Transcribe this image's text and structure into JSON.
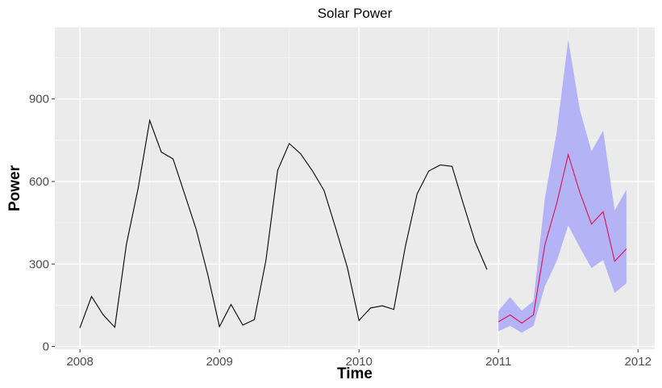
{
  "chart_data": {
    "type": "line",
    "title": "Solar Power",
    "xlabel": "Time",
    "ylabel": "Power",
    "xlim": [
      2007.82,
      2012.12
    ],
    "ylim": [
      -10,
      1160
    ],
    "x_ticks": [
      2008,
      2009,
      2010,
      2011,
      2012
    ],
    "x_tick_labels": [
      "2008",
      "2009",
      "2010",
      "2011",
      "2012"
    ],
    "y_ticks": [
      0,
      300,
      600,
      900
    ],
    "y_tick_labels": [
      "0",
      "300",
      "600",
      "900"
    ],
    "grid": true,
    "legend": "none",
    "colors": {
      "panel": "#ebebeb",
      "grid_major": "#ffffff",
      "grid_minor": "#f5f5f5",
      "observed": "#000000",
      "forecast": "#e0114b",
      "interval": "#b3b3f5"
    },
    "series": [
      {
        "role": "observed",
        "x": [
          2008.0,
          2008.083,
          2008.167,
          2008.25,
          2008.333,
          2008.417,
          2008.5,
          2008.583,
          2008.667,
          2008.75,
          2008.833,
          2008.917,
          2009.0,
          2009.083,
          2009.167,
          2009.25,
          2009.333,
          2009.417,
          2009.5,
          2009.583,
          2009.667,
          2009.75,
          2009.833,
          2009.917,
          2010.0,
          2010.083,
          2010.167,
          2010.25,
          2010.333,
          2010.417,
          2010.5,
          2010.583,
          2010.667,
          2010.75,
          2010.833,
          2010.917
        ],
        "values": [
          68,
          182,
          115,
          70,
          372,
          575,
          822,
          707,
          682,
          555,
          426,
          260,
          72,
          153,
          78,
          98,
          313,
          640,
          738,
          700,
          638,
          567,
          430,
          287,
          95,
          140,
          148,
          135,
          365,
          555,
          638,
          660,
          655,
          515,
          380,
          280
        ]
      },
      {
        "role": "forecast",
        "x": [
          2011.0,
          2011.083,
          2011.167,
          2011.25,
          2011.333,
          2011.417,
          2011.5,
          2011.583,
          2011.667,
          2011.75,
          2011.833,
          2011.917
        ],
        "values": [
          90,
          115,
          85,
          115,
          370,
          520,
          698,
          560,
          445,
          490,
          310,
          355
        ],
        "lower": [
          55,
          75,
          50,
          75,
          220,
          310,
          440,
          360,
          285,
          315,
          195,
          230
        ],
        "upper": [
          130,
          180,
          130,
          165,
          540,
          780,
          1115,
          860,
          710,
          785,
          495,
          570
        ]
      }
    ]
  }
}
